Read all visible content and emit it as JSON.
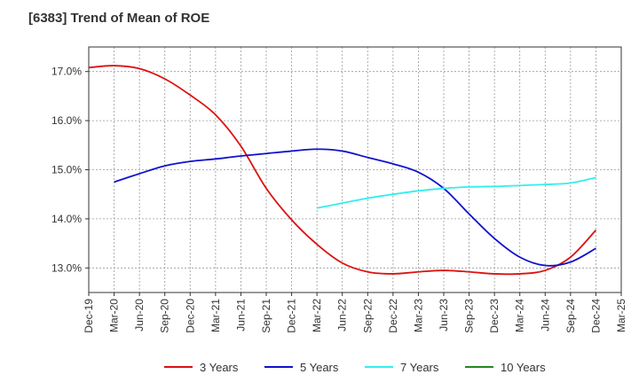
{
  "chart_data": {
    "type": "line",
    "title": "[6383]  Trend of Mean of ROE",
    "xlabel": "",
    "ylabel": "",
    "ylim": [
      12.5,
      17.5
    ],
    "grid": true,
    "legend_position": "bottom",
    "categories": [
      "Dec-19",
      "Mar-20",
      "Jun-20",
      "Sep-20",
      "Dec-20",
      "Mar-21",
      "Jun-21",
      "Sep-21",
      "Dec-21",
      "Mar-22",
      "Jun-22",
      "Sep-22",
      "Dec-22",
      "Mar-23",
      "Jun-23",
      "Sep-23",
      "Dec-23",
      "Mar-24",
      "Jun-24",
      "Sep-24",
      "Dec-24",
      "Mar-25"
    ],
    "y_ticks": [
      13.0,
      14.0,
      15.0,
      16.0,
      17.0
    ],
    "y_tick_labels": [
      "13.0%",
      "14.0%",
      "15.0%",
      "16.0%",
      "17.0%"
    ],
    "series": [
      {
        "name": "3 Years",
        "color": "#dd1111",
        "values": [
          17.08,
          17.12,
          17.06,
          16.85,
          16.52,
          16.12,
          15.48,
          14.62,
          13.98,
          13.48,
          13.1,
          12.92,
          12.88,
          12.92,
          12.95,
          12.92,
          12.88,
          12.88,
          12.95,
          13.22,
          13.77,
          null
        ]
      },
      {
        "name": "5 Years",
        "color": "#1111cc",
        "values": [
          null,
          14.75,
          14.92,
          15.08,
          15.17,
          15.22,
          15.28,
          15.33,
          15.38,
          15.42,
          15.38,
          15.25,
          15.12,
          14.95,
          14.62,
          14.1,
          13.6,
          13.22,
          13.05,
          13.12,
          13.4,
          null
        ]
      },
      {
        "name": "7 Years",
        "color": "#33eeee",
        "values": [
          null,
          null,
          null,
          null,
          null,
          null,
          null,
          null,
          null,
          14.22,
          14.32,
          14.42,
          14.5,
          14.57,
          14.62,
          14.65,
          14.66,
          14.68,
          14.7,
          14.73,
          14.84,
          null
        ]
      },
      {
        "name": "10 Years",
        "color": "#228822",
        "values": [
          null,
          null,
          null,
          null,
          null,
          null,
          null,
          null,
          null,
          null,
          null,
          null,
          null,
          null,
          null,
          null,
          null,
          null,
          null,
          null,
          null,
          null
        ]
      }
    ]
  }
}
